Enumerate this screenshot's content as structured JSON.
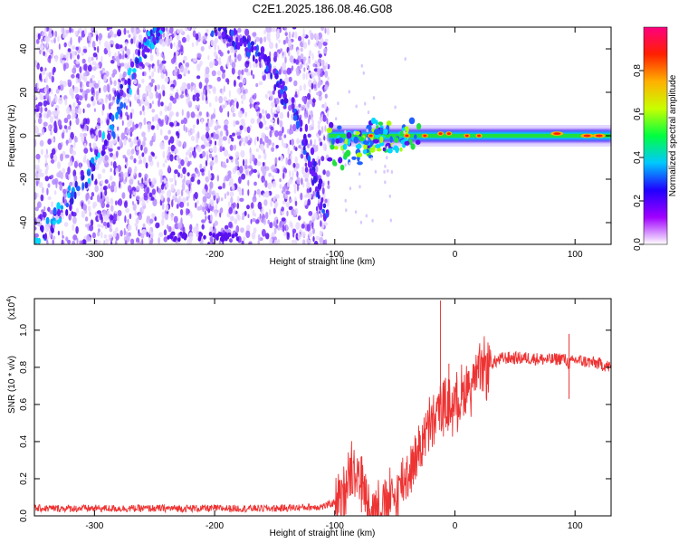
{
  "chart_data": [
    {
      "type": "heatmap",
      "title": "C2E1.2025.186.08.46.G08",
      "xlabel": "Height of straight line (km)",
      "ylabel": "Frequency (Hz)",
      "xlim": [
        -350,
        130
      ],
      "ylim": [
        -50,
        50
      ],
      "x_ticks": [
        -300,
        -200,
        -100,
        0,
        100
      ],
      "y_ticks": [
        -40,
        -20,
        0,
        20,
        40
      ],
      "colorbar": {
        "label": "Normalized spectral amplitude",
        "range": [
          0,
          1
        ],
        "ticks": [
          "0.0",
          "0.2",
          "0.4",
          "0.6",
          "0.8"
        ],
        "colors": [
          "#ffffff",
          "#a000ff",
          "#2000ff",
          "#00c8ff",
          "#00ff40",
          "#c8ff00",
          "#ffb000",
          "#ff2000",
          "#ff0080"
        ]
      },
      "features": [
        {
          "description": "noise speckle region",
          "x_range": [
            -350,
            -105
          ],
          "y_range": [
            -50,
            50
          ]
        },
        {
          "description": "rising arc",
          "points": [
            [
              -350,
              -50
            ],
            [
              -300,
              -14
            ],
            [
              -260,
              40
            ],
            [
              -245,
              50
            ]
          ]
        },
        {
          "description": "falling arc",
          "points": [
            [
              -200,
              50
            ],
            [
              -165,
              38
            ],
            [
              -130,
              8
            ],
            [
              -105,
              -40
            ]
          ]
        },
        {
          "description": "signal band near 0 Hz",
          "x_range": [
            -105,
            130
          ],
          "y_center": 0
        }
      ]
    },
    {
      "type": "line",
      "xlabel": "Height of straight line (km)",
      "ylabel": "SNR (10 * v/v)",
      "y_multiplier": "(x10",
      "y_multiplier_exp": "4",
      "xlim": [
        -350,
        130
      ],
      "ylim": [
        0,
        1.17
      ],
      "x_ticks": [
        -300,
        -200,
        -100,
        0,
        100
      ],
      "y_ticks": [
        "0.0",
        "0.2",
        "0.4",
        "0.6",
        "0.8",
        "1.0"
      ],
      "color": "#ee3333",
      "series": [
        {
          "x": [
            -350,
            -300,
            -250,
            -200,
            -150,
            -110,
            -95,
            -90,
            -85,
            -80,
            -75,
            -70,
            -65,
            -60,
            -55,
            -50,
            -45,
            -40,
            -35,
            -30,
            -25,
            -20,
            -15,
            -12,
            -10,
            -5,
            0,
            5,
            10,
            20,
            30,
            40,
            60,
            80,
            90,
            95,
            100,
            110,
            120,
            130
          ],
          "values": [
            0.04,
            0.04,
            0.04,
            0.04,
            0.04,
            0.05,
            0.08,
            0.22,
            0.28,
            0.22,
            0.12,
            0.05,
            0.05,
            0.06,
            0.08,
            0.09,
            0.18,
            0.22,
            0.28,
            0.36,
            0.44,
            0.48,
            0.55,
            0.6,
            0.58,
            0.58,
            0.62,
            0.64,
            0.7,
            0.76,
            0.82,
            0.85,
            0.85,
            0.84,
            0.85,
            0.82,
            0.84,
            0.83,
            0.82,
            0.8
          ]
        }
      ],
      "spikes": [
        {
          "x": -12,
          "value": 1.16
        },
        {
          "x": -5,
          "value": 0.82
        },
        {
          "x": 95,
          "value": 0.98
        },
        {
          "x": 95,
          "value": 0.63
        }
      ]
    }
  ]
}
